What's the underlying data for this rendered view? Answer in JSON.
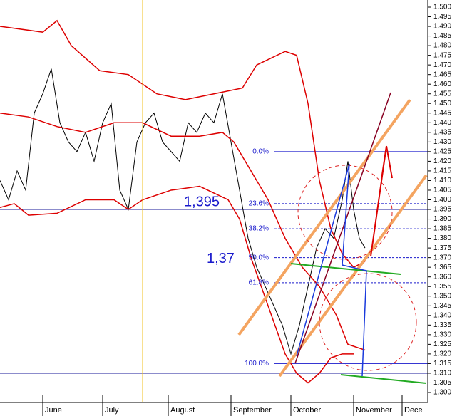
{
  "chart_data": {
    "type": "line",
    "xlim": [
      0,
      150
    ],
    "ylim": [
      1.3,
      1.5
    ],
    "xticks": [
      {
        "value": 15,
        "label": "June"
      },
      {
        "value": 36,
        "label": "July"
      },
      {
        "value": 59,
        "label": "August"
      },
      {
        "value": 81,
        "label": "September"
      },
      {
        "value": 102,
        "label": "October"
      },
      {
        "value": 124,
        "label": "November"
      },
      {
        "value": 141,
        "label": "Dece"
      }
    ],
    "yticks": [
      {
        "value": 1.5,
        "label": "1.500"
      },
      {
        "value": 1.495,
        "label": "1.495"
      },
      {
        "value": 1.49,
        "label": "1.490"
      },
      {
        "value": 1.485,
        "label": "1.485"
      },
      {
        "value": 1.48,
        "label": "1.480"
      },
      {
        "value": 1.475,
        "label": "1.475"
      },
      {
        "value": 1.47,
        "label": "1.470"
      },
      {
        "value": 1.465,
        "label": "1.465"
      },
      {
        "value": 1.46,
        "label": "1.460"
      },
      {
        "value": 1.455,
        "label": "1.455"
      },
      {
        "value": 1.45,
        "label": "1.450"
      },
      {
        "value": 1.445,
        "label": "1.445"
      },
      {
        "value": 1.44,
        "label": "1.440"
      },
      {
        "value": 1.435,
        "label": "1.435"
      },
      {
        "value": 1.43,
        "label": "1.430"
      },
      {
        "value": 1.425,
        "label": "1.425"
      },
      {
        "value": 1.42,
        "label": "1.420"
      },
      {
        "value": 1.415,
        "label": "1.415"
      },
      {
        "value": 1.41,
        "label": "1.410"
      },
      {
        "value": 1.405,
        "label": "1.405"
      },
      {
        "value": 1.4,
        "label": "1.400"
      },
      {
        "value": 1.395,
        "label": "1.395"
      },
      {
        "value": 1.39,
        "label": "1.390"
      },
      {
        "value": 1.385,
        "label": "1.385"
      },
      {
        "value": 1.38,
        "label": "1.380"
      },
      {
        "value": 1.375,
        "label": "1.375"
      },
      {
        "value": 1.37,
        "label": "1.370"
      },
      {
        "value": 1.365,
        "label": "1.365"
      },
      {
        "value": 1.36,
        "label": "1.360"
      },
      {
        "value": 1.355,
        "label": "1.355"
      },
      {
        "value": 1.35,
        "label": "1.350"
      },
      {
        "value": 1.345,
        "label": "1.345"
      },
      {
        "value": 1.34,
        "label": "1.340"
      },
      {
        "value": 1.335,
        "label": "1.335"
      },
      {
        "value": 1.33,
        "label": "1.330"
      },
      {
        "value": 1.325,
        "label": "1.325"
      },
      {
        "value": 1.32,
        "label": "1.320"
      },
      {
        "value": 1.315,
        "label": "1.315"
      },
      {
        "value": 1.31,
        "label": "1.310"
      },
      {
        "value": 1.305,
        "label": "1.305"
      },
      {
        "value": 1.3,
        "label": "1.300"
      }
    ],
    "series": [
      {
        "color": "#000000",
        "x": [
          0,
          3,
          6,
          9,
          12,
          15,
          18,
          21,
          24,
          27,
          30,
          33,
          36,
          39,
          42,
          45,
          48,
          51,
          54,
          57,
          60,
          63,
          66,
          69,
          72,
          75,
          78,
          81,
          84,
          87,
          90,
          93,
          96,
          99,
          102,
          105,
          108,
          111,
          114,
          117,
          120,
          122,
          124,
          126,
          128
        ],
        "values": [
          1.41,
          1.4,
          1.415,
          1.405,
          1.445,
          1.455,
          1.468,
          1.44,
          1.43,
          1.425,
          1.435,
          1.42,
          1.44,
          1.45,
          1.405,
          1.395,
          1.43,
          1.44,
          1.445,
          1.43,
          1.425,
          1.42,
          1.44,
          1.435,
          1.445,
          1.44,
          1.455,
          1.43,
          1.405,
          1.38,
          1.365,
          1.355,
          1.345,
          1.335,
          1.32,
          1.335,
          1.355,
          1.375,
          1.385,
          1.38,
          1.4,
          1.42,
          1.395,
          1.38,
          1.375
        ]
      },
      {
        "color": "#dd0000",
        "x": [
          0,
          15,
          20,
          25,
          35,
          45,
          55,
          65,
          75,
          85,
          90,
          100,
          104,
          108,
          112,
          116,
          120,
          124,
          128
        ],
        "values": [
          1.49,
          1.487,
          1.493,
          1.48,
          1.467,
          1.465,
          1.455,
          1.452,
          1.455,
          1.458,
          1.47,
          1.477,
          1.475,
          1.45,
          1.41,
          1.385,
          1.372,
          1.365,
          1.368
        ]
      },
      {
        "color": "#dd0000",
        "x": [
          0,
          10,
          20,
          30,
          40,
          50,
          60,
          70,
          78,
          82,
          88,
          94,
          100,
          106,
          112,
          118,
          122,
          128
        ],
        "values": [
          1.445,
          1.443,
          1.438,
          1.435,
          1.44,
          1.44,
          1.433,
          1.433,
          1.435,
          1.43,
          1.415,
          1.4,
          1.38,
          1.365,
          1.355,
          1.34,
          1.325,
          1.322
        ]
      },
      {
        "color": "#dd0000",
        "x": [
          0,
          5,
          10,
          20,
          30,
          40,
          45,
          50,
          60,
          70,
          80,
          84,
          88,
          94,
          100,
          104,
          108,
          112,
          116,
          120,
          124
        ],
        "values": [
          1.396,
          1.398,
          1.392,
          1.393,
          1.4,
          1.4,
          1.395,
          1.4,
          1.405,
          1.407,
          1.4,
          1.39,
          1.37,
          1.345,
          1.32,
          1.31,
          1.305,
          1.31,
          1.318,
          1.32,
          1.32
        ]
      }
    ],
    "fib_levels": [
      {
        "label": "0.0%",
        "price": 1.425
      },
      {
        "label": "23.6%",
        "price": 1.398
      },
      {
        "label": "38.2%",
        "price": 1.385
      },
      {
        "label": "50.0%",
        "price": 1.37
      },
      {
        "label": "61.8%",
        "price": 1.357
      },
      {
        "label": "100.0%",
        "price": 1.315
      }
    ],
    "hlines": [
      {
        "price": 1.395,
        "label": "1,395"
      },
      {
        "price": 1.31
      }
    ],
    "annotations": [
      {
        "text": "1,37",
        "price": 1.37
      }
    ]
  }
}
